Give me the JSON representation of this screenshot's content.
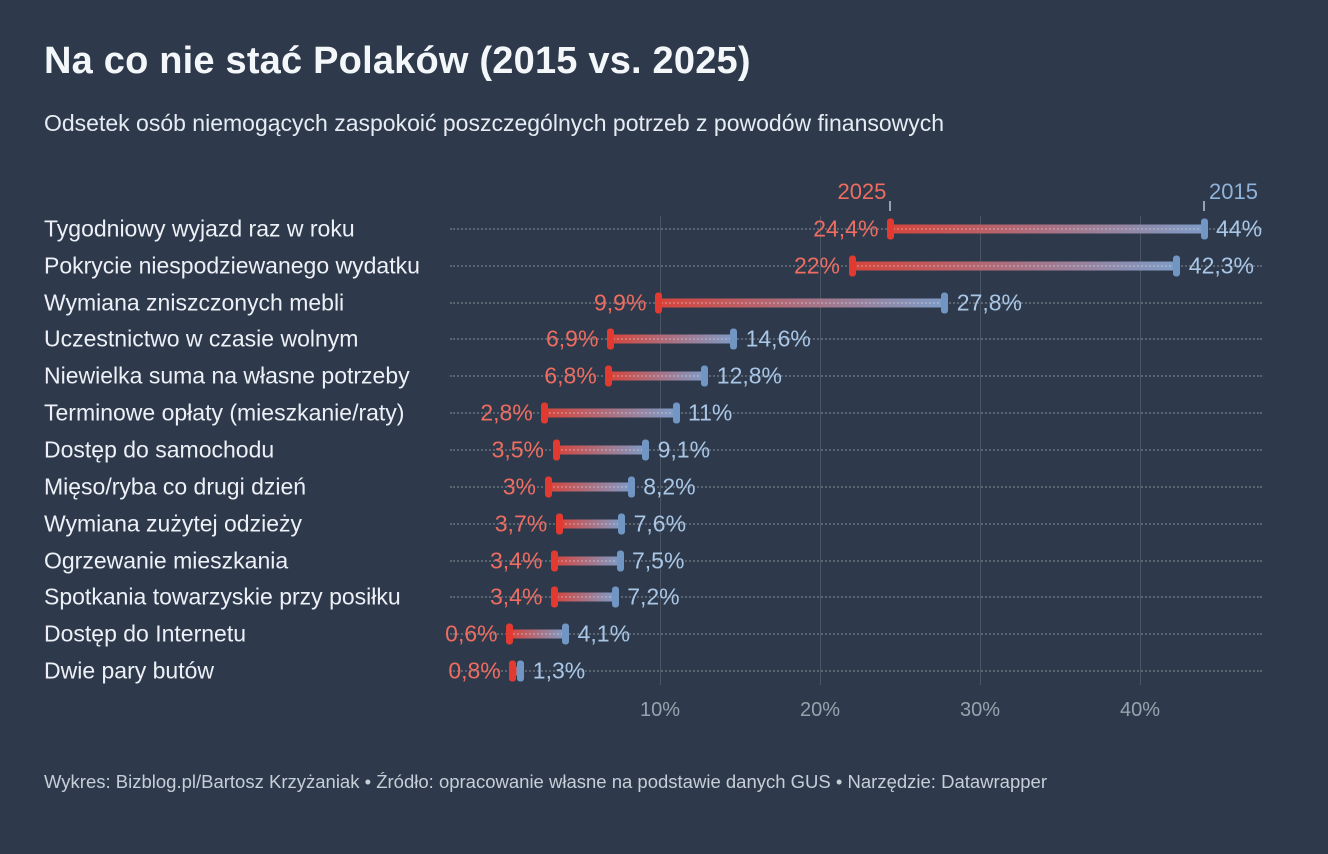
{
  "header": {
    "title": "Na co nie stać Polaków (2015 vs. 2025)",
    "subtitle": "Odsetek osób niemogących zaspokoić poszczególnych potrzeb z powodów finansowych"
  },
  "chart_data": {
    "type": "dumbbell",
    "title": "Na co nie stać Polaków (2015 vs. 2025)",
    "subtitle": "Odsetek osób niemogących zaspokoić poszczególnych potrzeb z powodów finansowych",
    "categories": [
      "Tygodniowy wyjazd raz w roku",
      "Pokrycie niespodziewanego wydatku",
      "Wymiana zniszczonych mebli",
      "Uczestnictwo w czasie wolnym",
      "Niewielka suma na własne potrzeby",
      "Terminowe opłaty (mieszkanie/raty)",
      "Dostęp do samochodu",
      "Mięso/ryba co drugi dzień",
      "Wymiana zużytej odzieży",
      "Ogrzewanie mieszkania",
      "Spotkania towarzyskie przy posiłku",
      "Dostęp do Internetu",
      "Dwie pary butów"
    ],
    "series": [
      {
        "name": "2025",
        "color": "#e23a30",
        "line_color": "#d6453c",
        "label_color": "#ee6c60",
        "values": [
          24.4,
          22,
          9.9,
          6.9,
          6.8,
          2.8,
          3.5,
          3,
          3.7,
          3.4,
          3.4,
          0.6,
          0.8
        ],
        "labels": [
          "24,4%",
          "22%",
          "9,9%",
          "6,9%",
          "6,8%",
          "2,8%",
          "3,5%",
          "3%",
          "3,7%",
          "3,4%",
          "3,4%",
          "0,6%",
          "0,8%"
        ]
      },
      {
        "name": "2015",
        "color": "#7296c4",
        "line_color": "#7e9cc7",
        "label_color": "#a9c6e6",
        "legend_color": "#8fb3da",
        "values": [
          44,
          42.3,
          27.8,
          14.6,
          12.8,
          11,
          9.1,
          8.2,
          7.6,
          7.5,
          7.2,
          4.1,
          1.3
        ],
        "labels": [
          "44%",
          "42,3%",
          "27,8%",
          "14,6%",
          "12,8%",
          "11%",
          "9,1%",
          "8,2%",
          "7,6%",
          "7,5%",
          "7,2%",
          "4,1%",
          "1,3%"
        ]
      }
    ],
    "xlabel": "",
    "ylabel": "",
    "x_axis": {
      "ticks": [
        10,
        20,
        30,
        40
      ],
      "tick_labels": [
        "10%",
        "20%",
        "30%",
        "40%"
      ],
      "range": [
        0,
        49.5
      ]
    },
    "legend": {
      "position": "top",
      "entries": [
        "2025",
        "2015"
      ]
    },
    "grid": "vertical",
    "background_color": "#2e3a4b"
  },
  "footer": {
    "text": "Wykres: Bizblog.pl/Bartosz Krzyżaniak • Źródło: opracowanie własne na podstawie danych GUS • Narzędzie: Datawrapper"
  }
}
